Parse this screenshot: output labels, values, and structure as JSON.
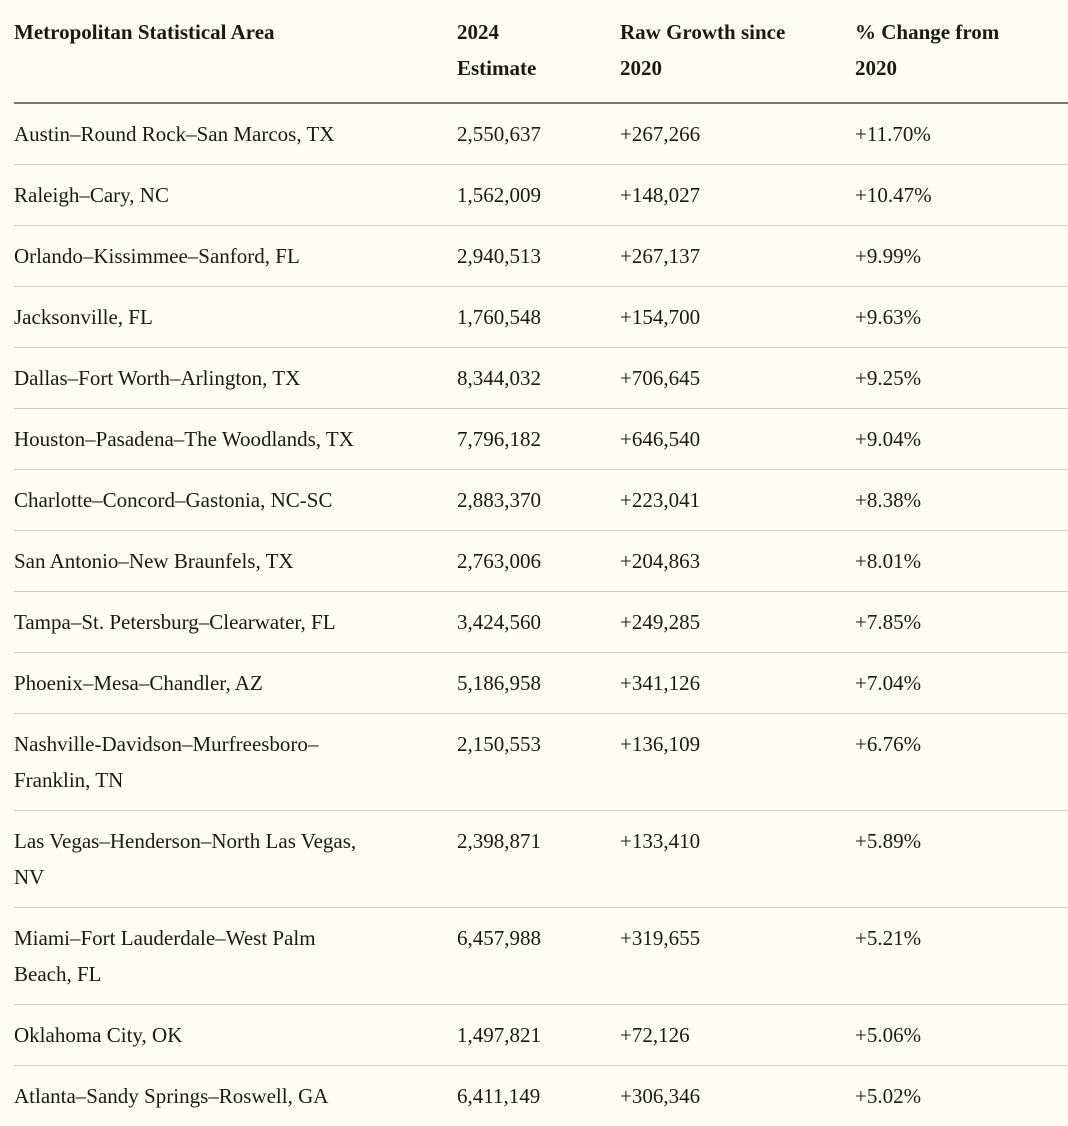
{
  "colors": {
    "background": "#fdfcf6",
    "text": "#1a1915",
    "header_rule": "#7a7872",
    "row_rule": "#d0cec5"
  },
  "table": {
    "columns": [
      {
        "label": "Metropolitan Statistical Area"
      },
      {
        "label": "2024 Estimate"
      },
      {
        "label": "Raw Growth since 2020"
      },
      {
        "label": "% Change from 2020"
      }
    ],
    "rows": [
      {
        "msa": "Austin–Round Rock–San Marcos, TX",
        "estimate_2024": "2,550,637",
        "raw_growth": "+267,266",
        "pct_change": "+11.70%"
      },
      {
        "msa": "Raleigh–Cary, NC",
        "estimate_2024": "1,562,009",
        "raw_growth": "+148,027",
        "pct_change": "+10.47%"
      },
      {
        "msa": "Orlando–Kissimmee–Sanford, FL",
        "estimate_2024": "2,940,513",
        "raw_growth": "+267,137",
        "pct_change": "+9.99%"
      },
      {
        "msa": "Jacksonville, FL",
        "estimate_2024": "1,760,548",
        "raw_growth": "+154,700",
        "pct_change": "+9.63%"
      },
      {
        "msa": "Dallas–Fort Worth–Arlington, TX",
        "estimate_2024": "8,344,032",
        "raw_growth": "+706,645",
        "pct_change": "+9.25%"
      },
      {
        "msa": "Houston–Pasadena–The Woodlands, TX",
        "estimate_2024": "7,796,182",
        "raw_growth": "+646,540",
        "pct_change": "+9.04%"
      },
      {
        "msa": "Charlotte–Concord–Gastonia, NC-SC",
        "estimate_2024": "2,883,370",
        "raw_growth": "+223,041",
        "pct_change": "+8.38%"
      },
      {
        "msa": "San Antonio–New Braunfels, TX",
        "estimate_2024": "2,763,006",
        "raw_growth": "+204,863",
        "pct_change": "+8.01%"
      },
      {
        "msa": "Tampa–St. Petersburg–Clearwater, FL",
        "estimate_2024": "3,424,560",
        "raw_growth": "+249,285",
        "pct_change": "+7.85%"
      },
      {
        "msa": "Phoenix–Mesa–Chandler, AZ",
        "estimate_2024": "5,186,958",
        "raw_growth": "+341,126",
        "pct_change": "+7.04%"
      },
      {
        "msa": "Nashville-Davidson–Murfreesboro–Franklin, TN",
        "estimate_2024": "2,150,553",
        "raw_growth": "+136,109",
        "pct_change": "+6.76%"
      },
      {
        "msa": "Las Vegas–Henderson–North Las Vegas, NV",
        "estimate_2024": "2,398,871",
        "raw_growth": "+133,410",
        "pct_change": "+5.89%"
      },
      {
        "msa": "Miami–Fort Lauderdale–West Palm Beach, FL",
        "estimate_2024": "6,457,988",
        "raw_growth": "+319,655",
        "pct_change": "+5.21%"
      },
      {
        "msa": "Oklahoma City, OK",
        "estimate_2024": "1,497,821",
        "raw_growth": "+72,126",
        "pct_change": "+5.06%"
      },
      {
        "msa": "Atlanta–Sandy Springs–Roswell, GA",
        "estimate_2024": "6,411,149",
        "raw_growth": "+306,346",
        "pct_change": "+5.02%"
      }
    ]
  }
}
